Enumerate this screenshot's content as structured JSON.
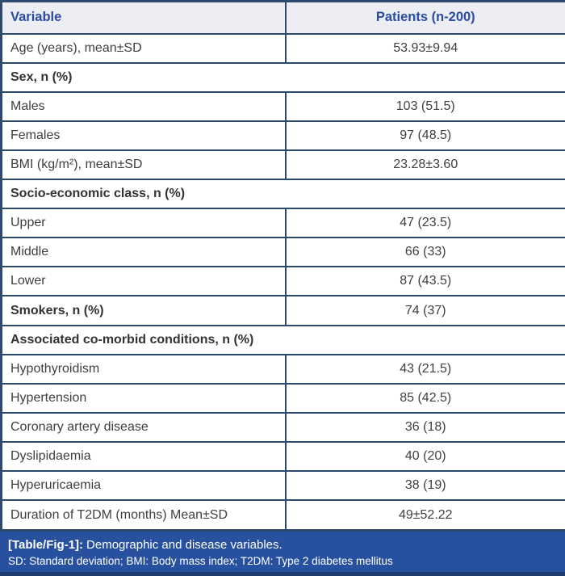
{
  "table": {
    "columns": {
      "variable": "Variable",
      "patients": "Patients (n-200)"
    },
    "rows": [
      {
        "type": "data",
        "label": "Age (years), mean±SD",
        "value": "53.93±9.94"
      },
      {
        "type": "section",
        "label": "Sex, n (%)"
      },
      {
        "type": "data",
        "label": "Males",
        "value": "103 (51.5)"
      },
      {
        "type": "data",
        "label": "Females",
        "value": "97 (48.5)"
      },
      {
        "type": "data",
        "label": "BMI (kg/m²), mean±SD",
        "value": "23.28±3.60"
      },
      {
        "type": "section",
        "label": "Socio-economic class, n (%)"
      },
      {
        "type": "data",
        "label": "Upper",
        "value": "47 (23.5)"
      },
      {
        "type": "data",
        "label": "Middle",
        "value": "66 (33)"
      },
      {
        "type": "data",
        "label": "Lower",
        "value": "87 (43.5)"
      },
      {
        "type": "data",
        "label": "Smokers, n (%)",
        "value": "74 (37)",
        "bold": true
      },
      {
        "type": "section",
        "label": "Associated co-morbid conditions, n (%)"
      },
      {
        "type": "data",
        "label": "Hypothyroidism",
        "value": "43 (21.5)"
      },
      {
        "type": "data",
        "label": "Hypertension",
        "value": "85 (42.5)"
      },
      {
        "type": "data",
        "label": "Coronary artery disease",
        "value": "36 (18)"
      },
      {
        "type": "data",
        "label": "Dyslipidaemia",
        "value": "40 (20)"
      },
      {
        "type": "data",
        "label": "Hyperuricaemia",
        "value": "38 (19)"
      },
      {
        "type": "data",
        "label": "Duration of T2DM (months) Mean±SD",
        "value": "49±52.22"
      }
    ]
  },
  "caption": {
    "tag": "[Table/Fig-1]:",
    "title": "Demographic and disease variables.",
    "abbreviations": "SD: Standard deviation; BMI: Body mass index; T2DM: Type 2 diabetes mellitus"
  },
  "colors": {
    "border": "#2b4a6e",
    "header_bg": "#ededf4",
    "header_text": "#2b4da1",
    "body_text": "#3f3f3f",
    "caption_bg": "#27509f",
    "caption_text": "#ffffff",
    "caption_bottom_strip": "#1d3c6d"
  },
  "chart_data": {
    "type": "table",
    "title": "[Table/Fig-1]: Demographic and disease variables.",
    "columns": [
      "Variable",
      "Patients (n-200)"
    ],
    "rows": [
      [
        "Age (years), mean±SD",
        "53.93±9.94"
      ],
      [
        "Sex, n (%)",
        ""
      ],
      [
        "Males",
        "103 (51.5)"
      ],
      [
        "Females",
        "97 (48.5)"
      ],
      [
        "BMI (kg/m²), mean±SD",
        "23.28±3.60"
      ],
      [
        "Socio-economic class, n (%)",
        ""
      ],
      [
        "Upper",
        "47 (23.5)"
      ],
      [
        "Middle",
        "66 (33)"
      ],
      [
        "Lower",
        "87 (43.5)"
      ],
      [
        "Smokers, n (%)",
        "74 (37)"
      ],
      [
        "Associated co-morbid conditions, n (%)",
        ""
      ],
      [
        "Hypothyroidism",
        "43 (21.5)"
      ],
      [
        "Hypertension",
        "85 (42.5)"
      ],
      [
        "Coronary artery disease",
        "36 (18)"
      ],
      [
        "Dyslipidaemia",
        "40 (20)"
      ],
      [
        "Hyperuricaemia",
        "38 (19)"
      ],
      [
        "Duration of T2DM (months) Mean±SD",
        "49±52.22"
      ]
    ],
    "footnote": "SD: Standard deviation; BMI: Body mass index; T2DM: Type 2 diabetes mellitus"
  }
}
